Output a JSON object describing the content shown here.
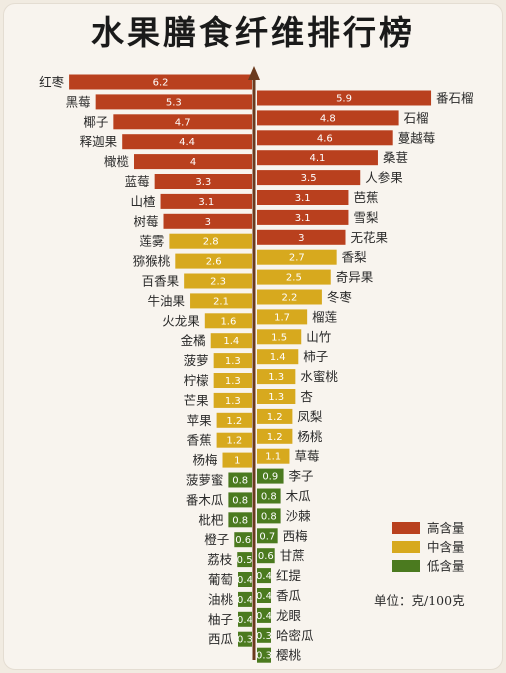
{
  "chart_data": {
    "type": "bar",
    "title": "水果膳食纤维排行榜",
    "unit_label": "单位：克/100克",
    "legend": [
      {
        "label": "高含量",
        "color": "#b9401e"
      },
      {
        "label": "中含量",
        "color": "#d7a91e"
      },
      {
        "label": "低含量",
        "color": "#4b7a1f"
      }
    ],
    "left": [
      {
        "name": "红枣",
        "value": 6.2,
        "level": 0
      },
      {
        "name": "黑莓",
        "value": 5.3,
        "level": 0
      },
      {
        "name": "椰子",
        "value": 4.7,
        "level": 0
      },
      {
        "name": "释迦果",
        "value": 4.4,
        "level": 0
      },
      {
        "name": "橄榄",
        "value": 4,
        "level": 0
      },
      {
        "name": "蓝莓",
        "value": 3.3,
        "level": 0
      },
      {
        "name": "山楂",
        "value": 3.1,
        "level": 0
      },
      {
        "name": "树莓",
        "value": 3,
        "level": 0
      },
      {
        "name": "莲雾",
        "value": 2.8,
        "level": 1
      },
      {
        "name": "猕猴桃",
        "value": 2.6,
        "level": 1
      },
      {
        "name": "百香果",
        "value": 2.3,
        "level": 1
      },
      {
        "name": "牛油果",
        "value": 2.1,
        "level": 1
      },
      {
        "name": "火龙果",
        "value": 1.6,
        "level": 1
      },
      {
        "name": "金橘",
        "value": 1.4,
        "level": 1
      },
      {
        "name": "菠萝",
        "value": 1.3,
        "level": 1
      },
      {
        "name": "柠檬",
        "value": 1.3,
        "level": 1
      },
      {
        "name": "芒果",
        "value": 1.3,
        "level": 1
      },
      {
        "name": "苹果",
        "value": 1.2,
        "level": 1
      },
      {
        "name": "香蕉",
        "value": 1.2,
        "level": 1
      },
      {
        "name": "杨梅",
        "value": 1,
        "level": 1
      },
      {
        "name": "菠萝蜜",
        "value": 0.8,
        "level": 2
      },
      {
        "name": "番木瓜",
        "value": 0.8,
        "level": 2
      },
      {
        "name": "枇杷",
        "value": 0.8,
        "level": 2
      },
      {
        "name": "橙子",
        "value": 0.6,
        "level": 2
      },
      {
        "name": "荔枝",
        "value": 0.5,
        "level": 2
      },
      {
        "name": "葡萄",
        "value": 0.4,
        "level": 2
      },
      {
        "name": "油桃",
        "value": 0.4,
        "level": 2
      },
      {
        "name": "柚子",
        "value": 0.4,
        "level": 2
      },
      {
        "name": "西瓜",
        "value": 0.3,
        "level": 2
      }
    ],
    "right": [
      {
        "name": "番石榴",
        "value": 5.9,
        "level": 0
      },
      {
        "name": "石榴",
        "value": 4.8,
        "level": 0
      },
      {
        "name": "蔓越莓",
        "value": 4.6,
        "level": 0
      },
      {
        "name": "桑葚",
        "value": 4.1,
        "level": 0
      },
      {
        "name": "人参果",
        "value": 3.5,
        "level": 0
      },
      {
        "name": "芭蕉",
        "value": 3.1,
        "level": 0
      },
      {
        "name": "雪梨",
        "value": 3.1,
        "level": 0
      },
      {
        "name": "无花果",
        "value": 3,
        "level": 0
      },
      {
        "name": "香梨",
        "value": 2.7,
        "level": 1
      },
      {
        "name": "奇异果",
        "value": 2.5,
        "level": 1
      },
      {
        "name": "冬枣",
        "value": 2.2,
        "level": 1
      },
      {
        "name": "榴莲",
        "value": 1.7,
        "level": 1
      },
      {
        "name": "山竹",
        "value": 1.5,
        "level": 1
      },
      {
        "name": "柿子",
        "value": 1.4,
        "level": 1
      },
      {
        "name": "水蜜桃",
        "value": 1.3,
        "level": 1
      },
      {
        "name": "杏",
        "value": 1.3,
        "level": 1
      },
      {
        "name": "凤梨",
        "value": 1.2,
        "level": 1
      },
      {
        "name": "杨桃",
        "value": 1.2,
        "level": 1
      },
      {
        "name": "草莓",
        "value": 1.1,
        "level": 1
      },
      {
        "name": "李子",
        "value": 0.9,
        "level": 2
      },
      {
        "name": "木瓜",
        "value": 0.8,
        "level": 2
      },
      {
        "name": "沙棘",
        "value": 0.8,
        "level": 2
      },
      {
        "name": "西梅",
        "value": 0.7,
        "level": 2
      },
      {
        "name": "甘蔗",
        "value": 0.6,
        "level": 2
      },
      {
        "name": "红提",
        "value": 0.4,
        "level": 2
      },
      {
        "name": "香瓜",
        "value": 0.4,
        "level": 2
      },
      {
        "name": "龙眼",
        "value": 0.4,
        "level": 2
      },
      {
        "name": "哈密瓜",
        "value": 0.3,
        "level": 2
      },
      {
        "name": "樱桃",
        "value": 0.3,
        "level": 2
      }
    ]
  }
}
